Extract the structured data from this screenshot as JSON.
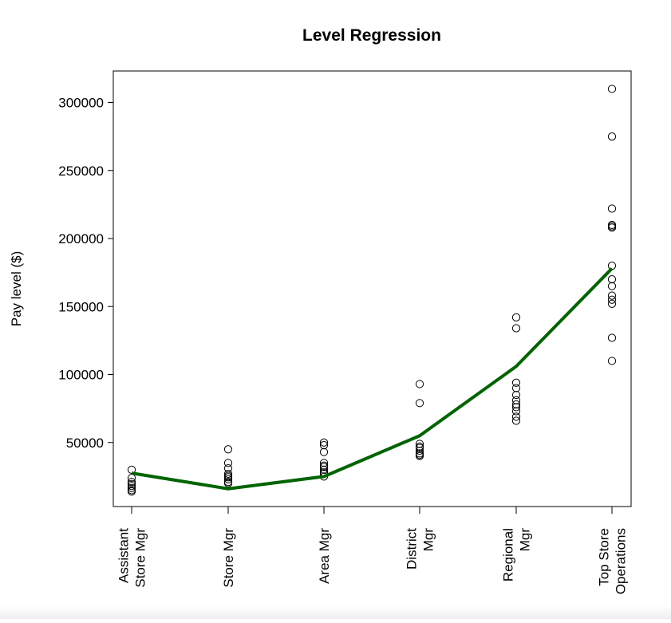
{
  "chart_data": {
    "type": "scatter",
    "title": "Level Regression",
    "xlabel": "",
    "ylabel": "Pay level ($)",
    "categories": [
      [
        "Assistant",
        "Store Mgr"
      ],
      [
        "Store Mgr"
      ],
      [
        "Area Mgr"
      ],
      [
        "District",
        "Mgr"
      ],
      [
        "Regional",
        "Mgr"
      ],
      [
        "Top Store",
        "Operations"
      ]
    ],
    "ylim": [
      0,
      320000
    ],
    "yticks": [
      50000,
      100000,
      150000,
      200000,
      250000,
      300000
    ],
    "ytick_labels": [
      "50000",
      "100000",
      "150000",
      "200000",
      "250000",
      "300000"
    ],
    "grid": false,
    "legend": "none",
    "series": [
      {
        "type": "scatter",
        "marker": "open-circle",
        "color": "#000000",
        "points": [
          [
            1,
            30000
          ],
          [
            1,
            24000
          ],
          [
            1,
            21000
          ],
          [
            1,
            19500
          ],
          [
            1,
            18000
          ],
          [
            1,
            16500
          ],
          [
            1,
            15000
          ],
          [
            1,
            14000
          ],
          [
            2,
            45000
          ],
          [
            2,
            35000
          ],
          [
            2,
            31000
          ],
          [
            2,
            27000
          ],
          [
            2,
            25500
          ],
          [
            2,
            24500
          ],
          [
            2,
            23000
          ],
          [
            2,
            21000
          ],
          [
            2,
            20000
          ],
          [
            3,
            50000
          ],
          [
            3,
            48000
          ],
          [
            3,
            43000
          ],
          [
            3,
            35000
          ],
          [
            3,
            33000
          ],
          [
            3,
            32000
          ],
          [
            3,
            30000
          ],
          [
            3,
            28000
          ],
          [
            3,
            27000
          ],
          [
            3,
            25000
          ],
          [
            4,
            93000
          ],
          [
            4,
            79000
          ],
          [
            4,
            49000
          ],
          [
            4,
            47000
          ],
          [
            4,
            46000
          ],
          [
            4,
            44000
          ],
          [
            4,
            42000
          ],
          [
            4,
            41000
          ],
          [
            4,
            40000
          ],
          [
            5,
            142000
          ],
          [
            5,
            134000
          ],
          [
            5,
            94000
          ],
          [
            5,
            90000
          ],
          [
            5,
            85000
          ],
          [
            5,
            81000
          ],
          [
            5,
            78000
          ],
          [
            5,
            76000
          ],
          [
            5,
            73000
          ],
          [
            5,
            69000
          ],
          [
            5,
            66000
          ],
          [
            6,
            310000
          ],
          [
            6,
            275000
          ],
          [
            6,
            222000
          ],
          [
            6,
            210000
          ],
          [
            6,
            209000
          ],
          [
            6,
            208000
          ],
          [
            6,
            180000
          ],
          [
            6,
            170000
          ],
          [
            6,
            165000
          ],
          [
            6,
            158000
          ],
          [
            6,
            155000
          ],
          [
            6,
            152000
          ],
          [
            6,
            127000
          ],
          [
            6,
            110000
          ]
        ]
      },
      {
        "type": "line",
        "color": "#006400",
        "x": [
          1,
          2,
          3,
          4,
          5,
          6
        ],
        "values": [
          27500,
          16000,
          25000,
          55000,
          106000,
          178000
        ]
      }
    ]
  }
}
